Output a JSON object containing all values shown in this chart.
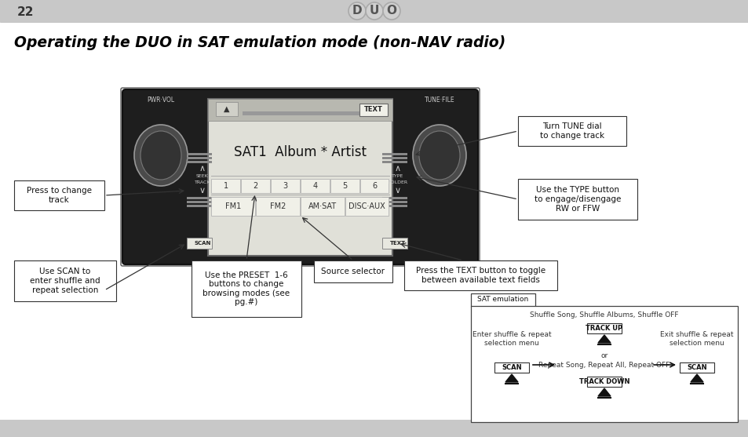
{
  "page_number": "22",
  "title": "Operating the DUO in SAT emulation mode (non-NAV radio)",
  "bg_color": "#ffffff",
  "header_bar_color": "#c8c8c8",
  "footer_bar_color": "#c8c8c8",
  "annotations": {
    "press_change_track": "Press to change\ntrack",
    "use_scan": "Use SCAN to\nenter shuffle and\nrepeat selection",
    "use_preset": "Use the PRESET  1-6\nbuttons to change\nbrowsing modes (see\npg.#)",
    "source_selector": "Source selector",
    "press_text": "Press the TEXT button to toggle\nbetween available text fields",
    "turn_tune": "Turn TUNE dial\nto change track",
    "use_type": "Use the TYPE button\nto engage/disengage\nRW or FFW"
  },
  "radio_display": "SAT1  Album * Artist",
  "preset_labels": [
    "1",
    "2",
    "3",
    "4",
    "5",
    "6"
  ],
  "source_labels": [
    "FM1",
    "FM2",
    "AM·SAT",
    "DISC·AUX"
  ],
  "sat_emulation": {
    "title": "SAT emulation",
    "top_text": "Shuffle Song, Shuffle Albums, Shuffle OFF",
    "track_up": "TRACK UP",
    "track_down": "TRACK DOWN",
    "or_text": "or",
    "middle_text": "Repeat Song, Repeat All, Repeat OFF",
    "left_label": "Enter shuffle & repeat\nselection menu",
    "right_label": "Exit shuffle & repeat\nselection menu",
    "scan_label": "SCAN"
  }
}
